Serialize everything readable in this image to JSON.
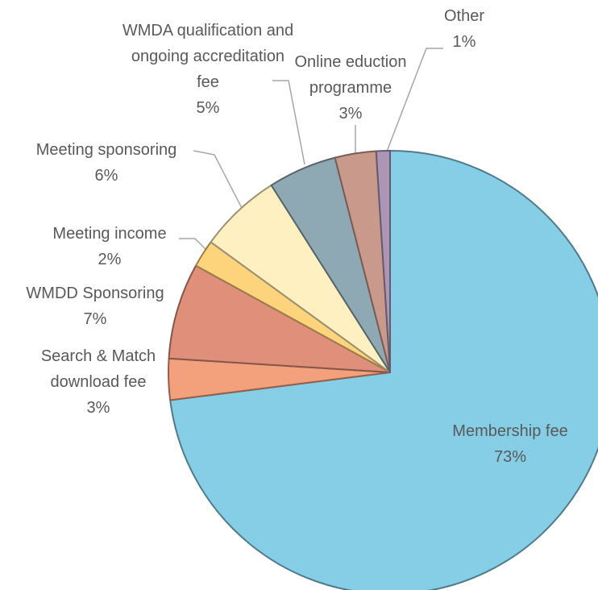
{
  "chart_data": {
    "type": "pie",
    "categories": [
      "Membership fee",
      "Search & Match download fee",
      "WMDD Sponsoring",
      "Meeting income",
      "Meeting sponsoring",
      "WMDA qualification and ongoing accreditation fee",
      "Online eduction programme",
      "Other"
    ],
    "values": [
      73,
      3,
      7,
      2,
      6,
      5,
      3,
      1
    ],
    "value_labels": [
      "73%",
      "3%",
      "7%",
      "2%",
      "6%",
      "5%",
      "3%",
      "1%"
    ],
    "colors": [
      "#86cde6",
      "#f3a07c",
      "#df8f7a",
      "#fdd37c",
      "#fff0c2",
      "#8ea9b3",
      "#c9998c",
      "#ab96b6"
    ]
  }
}
